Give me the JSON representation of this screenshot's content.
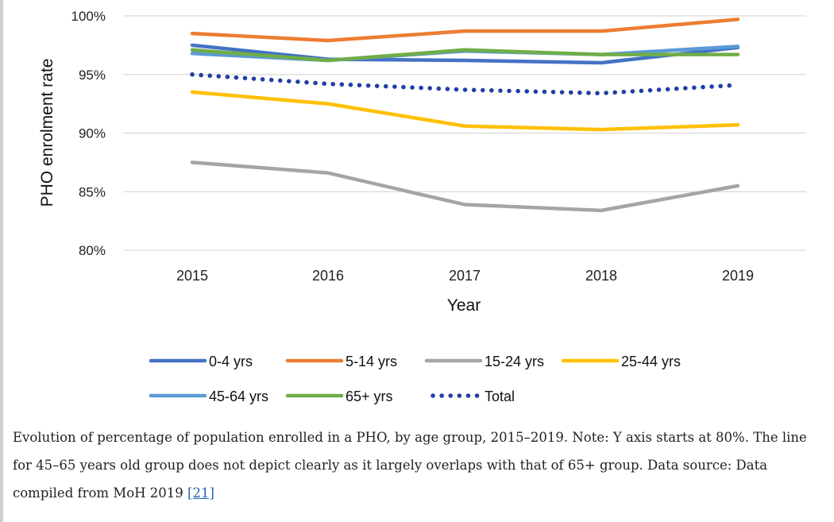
{
  "chart_data": {
    "type": "line",
    "title": "",
    "xlabel": "Year",
    "ylabel": "PHO enrolment rate",
    "ylim": [
      80,
      100
    ],
    "yticks": [
      80,
      85,
      90,
      95,
      100
    ],
    "ytick_labels": [
      "80%",
      "85%",
      "90%",
      "95%",
      "100%"
    ],
    "categories": [
      "2015",
      "2016",
      "2017",
      "2018",
      "2019"
    ],
    "grid": true,
    "legend_position": "bottom",
    "series": [
      {
        "name": "0-4 yrs",
        "color": "#4472c4",
        "style": "solid",
        "values": [
          97.5,
          96.3,
          96.2,
          96.0,
          97.3
        ]
      },
      {
        "name": "5-14 yrs",
        "color": "#ed7d31",
        "style": "solid",
        "values": [
          98.5,
          97.9,
          98.7,
          98.7,
          99.7
        ]
      },
      {
        "name": "15-24 yrs",
        "color": "#a5a5a5",
        "style": "solid",
        "values": [
          87.5,
          86.6,
          83.9,
          83.4,
          85.5
        ]
      },
      {
        "name": "25-44 yrs",
        "color": "#ffc000",
        "style": "solid",
        "values": [
          93.5,
          92.5,
          90.6,
          90.3,
          90.7
        ]
      },
      {
        "name": "45-64 yrs",
        "color": "#5b9bd5",
        "style": "solid",
        "values": [
          96.8,
          96.2,
          97.0,
          96.7,
          97.4
        ]
      },
      {
        "name": "65+ yrs",
        "color": "#70ad47",
        "style": "solid",
        "values": [
          97.1,
          96.2,
          97.1,
          96.7,
          96.7
        ]
      },
      {
        "name": "Total",
        "color": "#1f3fa6",
        "style": "dotted",
        "values": [
          95.0,
          94.2,
          93.7,
          93.4,
          94.1
        ]
      }
    ]
  },
  "caption": {
    "text": "Evolution of percentage of population enrolled in a PHO, by age group, 2015–2019. Note: Y axis starts at 80%. The line for 45–65 years old group does not depict clearly as it largely overlaps with that of 65+ group. Data source: Data compiled from MoH 2019 ",
    "ref_label": "[21]"
  }
}
